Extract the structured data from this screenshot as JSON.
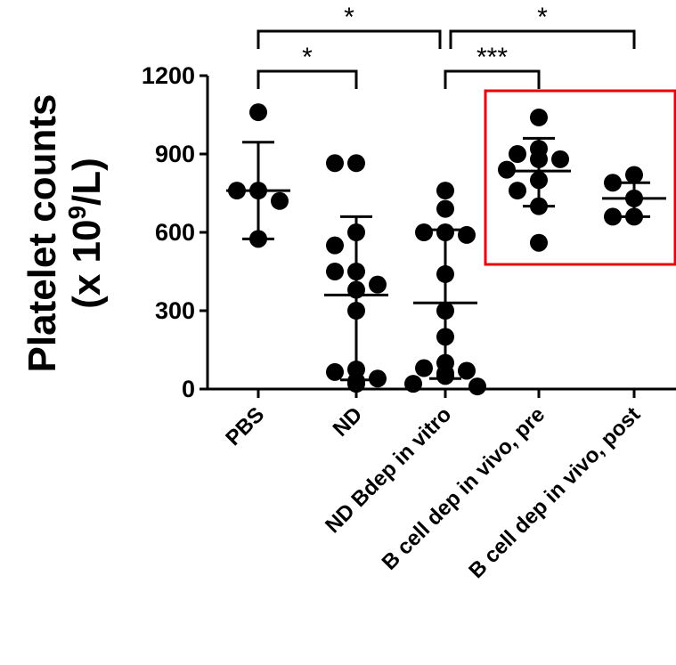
{
  "chart_data": {
    "type": "scatter",
    "ylabel_line1": "Platelet counts",
    "ylabel_line2_prefix": "(x 10",
    "ylabel_line2_sup": "9",
    "ylabel_line2_suffix": "/L)",
    "ylim": [
      0,
      1200
    ],
    "yticks": [
      0,
      300,
      600,
      900,
      1200
    ],
    "ytick_labels": [
      "0",
      "300",
      "600",
      "900",
      "1200"
    ],
    "categories": [
      "PBS",
      "ND",
      "ND Bdep in vitro",
      "B cell dep in vivo, pre",
      "B cell dep in vivo, post"
    ],
    "groups": [
      {
        "category": "PBS",
        "mean": 760,
        "sd_low": 575,
        "sd_high": 945,
        "points": [
          1060,
          760,
          760,
          720,
          575
        ]
      },
      {
        "category": "ND",
        "mean": 360,
        "sd_low": 35,
        "sd_high": 660,
        "points": [
          865,
          865,
          600,
          550,
          450,
          450,
          400,
          380,
          300,
          75,
          65,
          40,
          30,
          25,
          25,
          20
        ]
      },
      {
        "category": "ND Bdep in vitro",
        "mean": 330,
        "sd_low": 40,
        "sd_high": 610,
        "points": [
          760,
          690,
          600,
          600,
          590,
          440,
          300,
          200,
          100,
          80,
          70,
          60,
          50,
          20,
          10
        ]
      },
      {
        "category": "B cell dep in vivo, pre",
        "mean": 835,
        "sd_low": 700,
        "sd_high": 960,
        "points": [
          1040,
          920,
          900,
          880,
          880,
          840,
          800,
          760,
          700,
          560
        ]
      },
      {
        "category": "B cell dep in vivo, post",
        "mean": 730,
        "sd_low": 660,
        "sd_high": 790,
        "points": [
          820,
          790,
          730,
          660,
          660
        ]
      }
    ],
    "significance": [
      {
        "from": "PBS",
        "to": "ND",
        "label": "*",
        "level": 1
      },
      {
        "from": "ND Bdep in vitro",
        "to": "B cell dep in vivo, pre",
        "label": "***",
        "level": 1
      },
      {
        "from": "PBS",
        "to": "ND Bdep in vitro",
        "label": "*",
        "level": 2
      },
      {
        "from": "ND Bdep in vitro",
        "to": "B cell dep in vivo, post",
        "label": "*",
        "level": 2
      }
    ],
    "highlight": {
      "from": "B cell dep in vivo, pre",
      "to": "B cell dep in vivo, post",
      "color": "#e8000b"
    },
    "grid": false
  }
}
